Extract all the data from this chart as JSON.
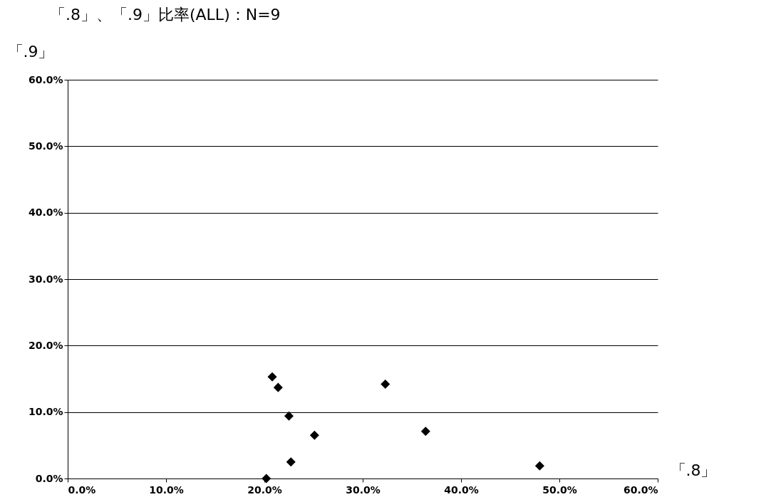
{
  "chart_data": {
    "type": "scatter",
    "title": "「.8」、「.9」比率(ALL)：N=9",
    "xlabel": "「.8」",
    "ylabel": "「.9」",
    "x": [
      20.8,
      21.4,
      22.5,
      25.1,
      22.7,
      20.2,
      32.3,
      36.4,
      48.0
    ],
    "series": [
      {
        "color": "#000000",
        "values": [
          15.3,
          13.7,
          9.4,
          6.5,
          2.5,
          0.0,
          14.2,
          7.1,
          1.9
        ]
      }
    ],
    "xlim": [
      0,
      60
    ],
    "ylim": [
      0,
      60
    ],
    "xticks": [
      {
        "value": 0,
        "label": "0.0%"
      },
      {
        "value": 10,
        "label": "10.0%"
      },
      {
        "value": 20,
        "label": "20.0%"
      },
      {
        "value": 30,
        "label": "30.0%"
      },
      {
        "value": 40,
        "label": "40.0%"
      },
      {
        "value": 50,
        "label": "50.0%"
      },
      {
        "value": 60,
        "label": "60.0%"
      }
    ],
    "yticks": [
      {
        "value": 0,
        "label": "0.0%"
      },
      {
        "value": 10,
        "label": "10.0%"
      },
      {
        "value": 20,
        "label": "20.0%"
      },
      {
        "value": 30,
        "label": "30.0%"
      },
      {
        "value": 40,
        "label": "40.0%"
      },
      {
        "value": 50,
        "label": "50.0%"
      },
      {
        "value": 60,
        "label": "60.0%"
      }
    ],
    "grid": "y",
    "marker": "diamond"
  }
}
